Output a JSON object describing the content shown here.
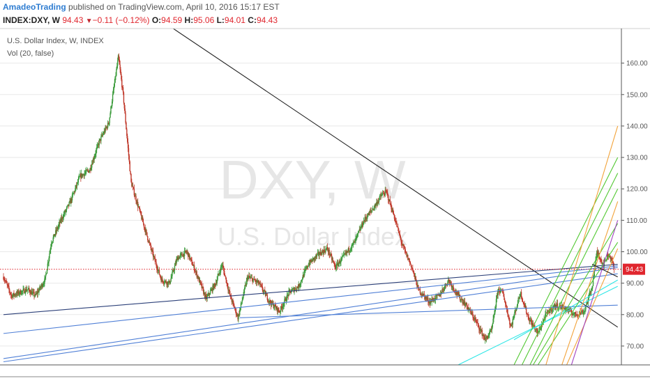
{
  "header": {
    "publisher": "AmadeoTrading",
    "published_text": "published on TradingView.com, April 10, 2016 15:17 EST",
    "ticker": "INDEX:DXY, W",
    "last": "94.43",
    "change": "−0.11 (−0.12%)",
    "open_label": "O:",
    "open": "94.59",
    "high_label": "H:",
    "high": "95.06",
    "low_label": "L:",
    "low": "94.01",
    "close_label": "C:",
    "close": "94.43"
  },
  "legend": {
    "series": "U.S. Dollar Index, W, INDEX",
    "volume": "Vol (20, false)"
  },
  "watermark": {
    "symbol": "DXY, W",
    "name": "U.S. Dollar Index"
  },
  "colors": {
    "up": "#3a9a3a",
    "down": "#c0392b",
    "price_line": "#e0262e",
    "axis_text": "#555555",
    "grid": "#e8e8e8",
    "downtrend": "#222222",
    "support_dark": "#2b3f78",
    "support_blue": "#4f7fd6",
    "cyan": "#2ee6e6",
    "green_fan": "#52c832",
    "orange_fan": "#f2a33a",
    "purple_fan": "#a040c0"
  },
  "chart_data": {
    "type": "candlestick",
    "y_axis": {
      "ticks": [
        160,
        150,
        140,
        130,
        120,
        110,
        100,
        90,
        80,
        70
      ],
      "tick_labels": [
        "160.00",
        "150.00",
        "140.00",
        "130.00",
        "120.00",
        "110.00",
        "100.00",
        "90.00",
        "80.00",
        "70.00"
      ],
      "ylim": [
        64,
        171
      ],
      "position": "right"
    },
    "x_range": [
      1978,
      2016.6
    ],
    "last_price_label": "94.43",
    "last_price": 94.43,
    "series": [
      {
        "kind": "price_path",
        "points": [
          [
            1978.0,
            92
          ],
          [
            1978.5,
            86
          ],
          [
            1979.0,
            87
          ],
          [
            1979.5,
            88
          ],
          [
            1980.0,
            86
          ],
          [
            1980.6,
            91
          ],
          [
            1981.0,
            103
          ],
          [
            1981.6,
            110
          ],
          [
            1982.2,
            116
          ],
          [
            1982.8,
            124
          ],
          [
            1983.4,
            126
          ],
          [
            1984.0,
            135
          ],
          [
            1984.6,
            141
          ],
          [
            1985.2,
            162
          ],
          [
            1985.5,
            150
          ],
          [
            1986.0,
            122
          ],
          [
            1986.7,
            110
          ],
          [
            1987.3,
            100
          ],
          [
            1987.9,
            91
          ],
          [
            1988.4,
            90
          ],
          [
            1988.9,
            98
          ],
          [
            1989.5,
            100
          ],
          [
            1990.1,
            93
          ],
          [
            1990.7,
            85
          ],
          [
            1991.3,
            90
          ],
          [
            1991.7,
            96
          ],
          [
            1992.2,
            86
          ],
          [
            1992.7,
            79
          ],
          [
            1993.3,
            92
          ],
          [
            1994.0,
            90
          ],
          [
            1994.7,
            84
          ],
          [
            1995.3,
            81
          ],
          [
            1995.9,
            87
          ],
          [
            1996.5,
            89
          ],
          [
            1997.1,
            96
          ],
          [
            1997.7,
            99
          ],
          [
            1998.3,
            101
          ],
          [
            1998.8,
            95
          ],
          [
            1999.4,
            99
          ],
          [
            2000.0,
            103
          ],
          [
            2000.6,
            110
          ],
          [
            2001.2,
            114
          ],
          [
            2001.7,
            118
          ],
          [
            2002.0,
            119
          ],
          [
            2002.5,
            111
          ],
          [
            2003.0,
            102
          ],
          [
            2003.6,
            95
          ],
          [
            2004.0,
            88
          ],
          [
            2004.7,
            84
          ],
          [
            2005.3,
            86
          ],
          [
            2005.9,
            91
          ],
          [
            2006.5,
            86
          ],
          [
            2007.0,
            83
          ],
          [
            2007.6,
            78
          ],
          [
            2008.2,
            72
          ],
          [
            2008.6,
            75
          ],
          [
            2009.0,
            88
          ],
          [
            2009.3,
            87
          ],
          [
            2009.8,
            76
          ],
          [
            2010.4,
            87
          ],
          [
            2010.9,
            79
          ],
          [
            2011.5,
            74
          ],
          [
            2012.0,
            80
          ],
          [
            2012.6,
            83
          ],
          [
            2013.2,
            82
          ],
          [
            2013.8,
            80
          ],
          [
            2014.4,
            81
          ],
          [
            2014.9,
            89
          ],
          [
            2015.2,
            100
          ],
          [
            2015.6,
            96
          ],
          [
            2015.9,
            99
          ],
          [
            2016.1,
            98
          ],
          [
            2016.27,
            94.43
          ]
        ]
      },
      {
        "name": "",
        "kind": "trendline",
        "color": "downtrend",
        "from": [
          1986.0,
          180
        ],
        "to": [
          2016.5,
          76
        ]
      },
      {
        "name": "",
        "kind": "trendline",
        "color": "support_dark",
        "from": [
          1978.0,
          80
        ],
        "to": [
          2016.5,
          96
        ]
      },
      {
        "name": "",
        "kind": "trendline",
        "color": "support_blue",
        "from": [
          1978.0,
          74
        ],
        "to": [
          2016.5,
          95.5
        ]
      },
      {
        "name": "",
        "kind": "trendline",
        "color": "support_blue",
        "from": [
          1978.0,
          66
        ],
        "to": [
          2016.5,
          95
        ]
      },
      {
        "name": "",
        "kind": "trendline",
        "color": "support_blue",
        "from": [
          1978.0,
          65
        ],
        "to": [
          2016.5,
          93
        ]
      },
      {
        "name": "",
        "kind": "trendline",
        "color": "support_blue",
        "from": [
          1992.8,
          79
        ],
        "to": [
          2016.5,
          83
        ]
      },
      {
        "name": "",
        "kind": "trendline",
        "color": "cyan",
        "from": [
          2006.5,
          64
        ],
        "to": [
          2016.5,
          89
        ]
      },
      {
        "name": "",
        "kind": "trendline",
        "color": "cyan",
        "from": [
          2010.0,
          72
        ],
        "to": [
          2016.5,
          91
        ]
      },
      {
        "name": "",
        "kind": "trendline",
        "color": "green_fan",
        "from": [
          2010.0,
          64
        ],
        "to": [
          2016.5,
          130
        ]
      },
      {
        "name": "",
        "kind": "trendline",
        "color": "green_fan",
        "from": [
          2010.5,
          64
        ],
        "to": [
          2016.5,
          125
        ]
      },
      {
        "name": "",
        "kind": "trendline",
        "color": "green_fan",
        "from": [
          2011.0,
          64
        ],
        "to": [
          2016.5,
          120
        ]
      },
      {
        "name": "",
        "kind": "trendline",
        "color": "green_fan",
        "from": [
          2011.2,
          64
        ],
        "to": [
          2016.5,
          109
        ]
      },
      {
        "name": "",
        "kind": "trendline",
        "color": "green_fan",
        "from": [
          2011.5,
          64
        ],
        "to": [
          2016.5,
          103
        ]
      },
      {
        "name": "",
        "kind": "trendline",
        "color": "orange_fan",
        "from": [
          2012.0,
          64
        ],
        "to": [
          2016.5,
          140
        ]
      },
      {
        "name": "",
        "kind": "trendline",
        "color": "orange_fan",
        "from": [
          2013.0,
          64
        ],
        "to": [
          2016.5,
          116
        ]
      },
      {
        "name": "",
        "kind": "trendline",
        "color": "orange_fan",
        "from": [
          2013.3,
          64
        ],
        "to": [
          2016.5,
          101
        ]
      },
      {
        "name": "",
        "kind": "trendline",
        "color": "purple_fan",
        "from": [
          2013.6,
          64
        ],
        "to": [
          2016.5,
          110
        ]
      },
      {
        "name": "",
        "kind": "trendline",
        "color": "downtrend",
        "from": [
          2014.9,
          96
        ],
        "to": [
          2016.5,
          92
        ]
      }
    ]
  }
}
